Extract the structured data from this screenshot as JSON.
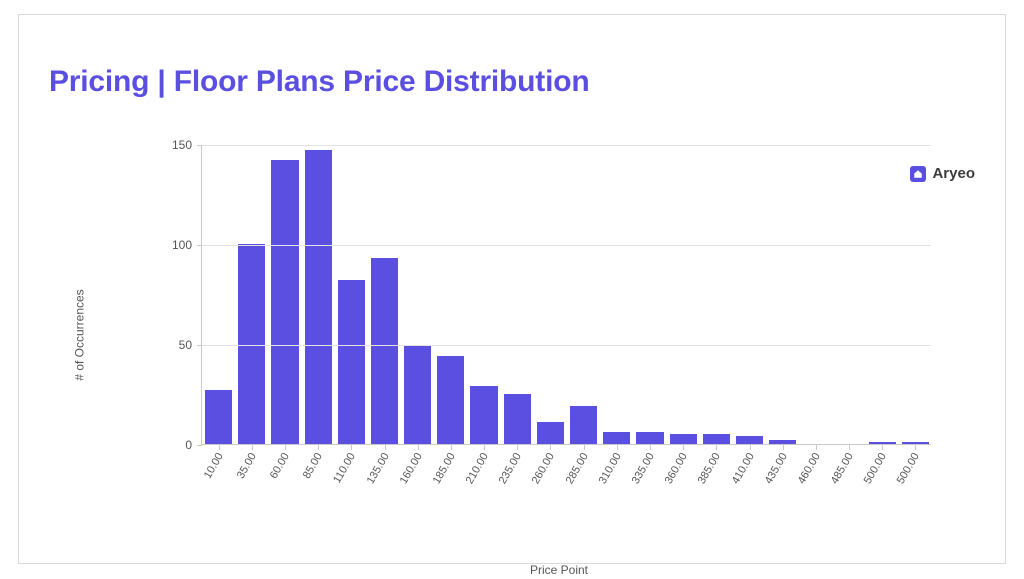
{
  "title": {
    "text": "Pricing | Floor Plans Price Distribution",
    "color": "#5a4fe0",
    "fontsize": 30,
    "fontweight": 800
  },
  "legend": {
    "label": "Aryeo",
    "swatch_color": "#5a4fe0",
    "text_color": "#3c3c3c"
  },
  "chart": {
    "type": "bar",
    "categories": [
      "10.00",
      "35.00",
      "60.00",
      "85.00",
      "110.00",
      "135.00",
      "160.00",
      "185.00",
      "210.00",
      "235.00",
      "260.00",
      "285.00",
      "310.00",
      "335.00",
      "360.00",
      "385.00",
      "410.00",
      "435.00",
      "460.00",
      "485.00",
      "500.00",
      "500.00"
    ],
    "values": [
      27,
      100,
      142,
      147,
      82,
      93,
      49,
      44,
      29,
      25,
      11,
      19,
      6,
      6,
      5,
      5,
      4,
      2,
      0,
      0,
      1,
      1
    ],
    "bar_color": "#5a4fe0",
    "bar_width": 0.82,
    "background_color": "#ffffff",
    "grid_color": "#e3e3e3",
    "axis_color": "#c9c9c9",
    "ylabel": "# of Occurrences",
    "xlabel": "Price Point",
    "label_fontsize": 12,
    "tick_fontsize": 12,
    "xtick_fontsize": 11,
    "xtick_rotation_deg": -60,
    "ylim": [
      0,
      150
    ],
    "ytick_step": 50,
    "yticks": [
      0,
      50,
      100,
      150
    ]
  }
}
